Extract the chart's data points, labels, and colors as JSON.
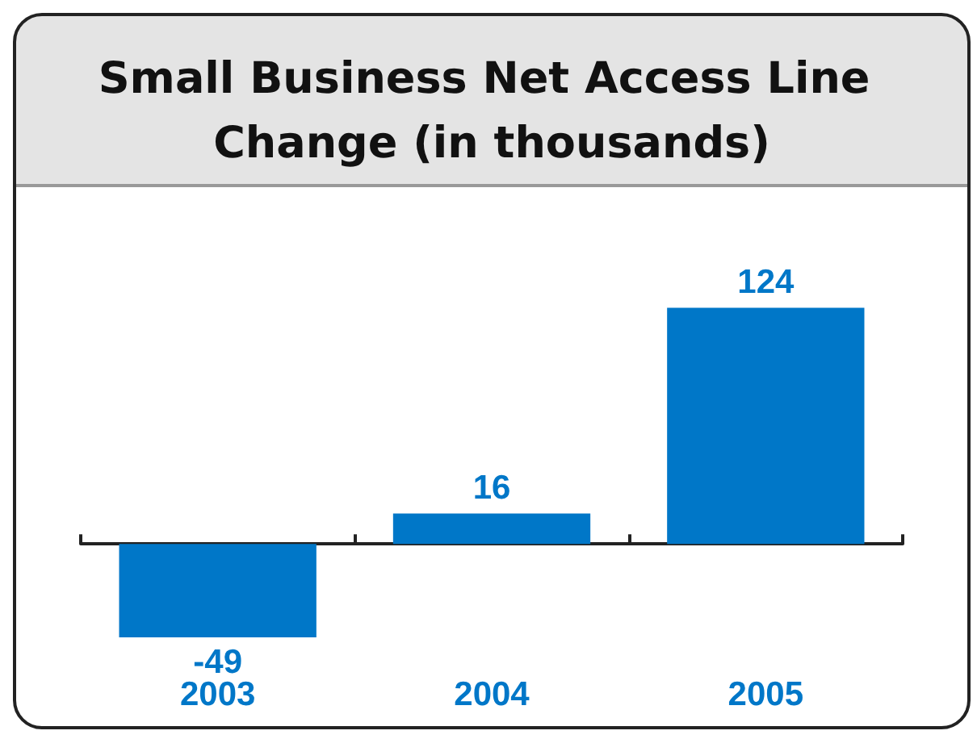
{
  "chart_data": {
    "type": "bar",
    "title": "Small Business Net Access Line Change (in thousands)",
    "categories": [
      "2003",
      "2004",
      "2005"
    ],
    "values": [
      -49,
      16,
      124
    ],
    "color": "#0077c8",
    "data_labels": true
  }
}
